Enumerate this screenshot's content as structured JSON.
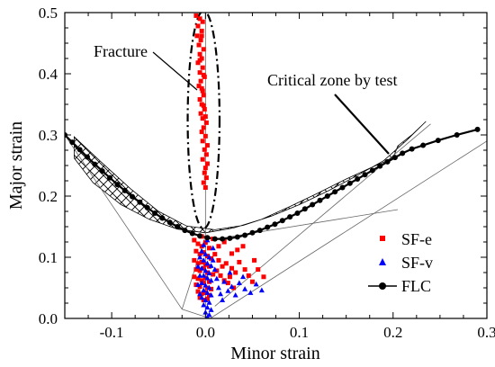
{
  "chart_data": {
    "type": "scatter",
    "xlabel": "Minor strain",
    "ylabel": "Major strain",
    "xlim": [
      -0.15,
      0.3
    ],
    "ylim": [
      0.0,
      0.5
    ],
    "x_ticks": [
      {
        "value": -0.1,
        "label": "-0.1"
      },
      {
        "value": 0.0,
        "label": "0.0"
      },
      {
        "value": 0.1,
        "label": "0.1"
      },
      {
        "value": 0.2,
        "label": "0.2"
      },
      {
        "value": 0.3,
        "label": "0.3"
      }
    ],
    "y_ticks": [
      {
        "value": 0.0,
        "label": "0.0"
      },
      {
        "value": 0.1,
        "label": "0.1"
      },
      {
        "value": 0.2,
        "label": "0.2"
      },
      {
        "value": 0.3,
        "label": "0.3"
      },
      {
        "value": 0.4,
        "label": "0.4"
      },
      {
        "value": 0.5,
        "label": "0.5"
      }
    ],
    "grid": false,
    "legend_position": "bottom-right",
    "annotations": {
      "fracture": "Fracture",
      "critical_zone": "Critical zone by test"
    },
    "series": [
      {
        "name": "SF-e",
        "marker": "square",
        "color": "#ff0000",
        "points": [
          [
            -0.01,
            0.495
          ],
          [
            -0.006,
            0.49
          ],
          [
            -0.003,
            0.485
          ],
          [
            -0.008,
            0.478
          ],
          [
            -0.004,
            0.47
          ],
          [
            -0.009,
            0.462
          ],
          [
            -0.005,
            0.455
          ],
          [
            -0.007,
            0.447
          ],
          [
            -0.002,
            0.44
          ],
          [
            -0.006,
            0.432
          ],
          [
            -0.004,
            0.425
          ],
          [
            -0.008,
            0.418
          ],
          [
            -0.003,
            0.41
          ],
          [
            -0.006,
            0.402
          ],
          [
            -0.001,
            0.395
          ],
          [
            -0.005,
            0.388
          ],
          [
            -0.007,
            0.38
          ],
          [
            -0.003,
            0.372
          ],
          [
            -0.002,
            0.365
          ],
          [
            -0.006,
            0.358
          ],
          [
            -0.004,
            0.35
          ],
          [
            -0.001,
            0.342
          ],
          [
            -0.005,
            0.335
          ],
          [
            -0.003,
            0.327
          ],
          [
            0.001,
            0.32
          ],
          [
            -0.002,
            0.312
          ],
          [
            -0.004,
            0.305
          ],
          [
            0.0,
            0.298
          ],
          [
            -0.003,
            0.29
          ],
          [
            0.002,
            0.283
          ],
          [
            -0.001,
            0.276
          ],
          [
            0.001,
            0.268
          ],
          [
            -0.003,
            0.26
          ],
          [
            0.002,
            0.253
          ],
          [
            0.0,
            0.246
          ],
          [
            -0.001,
            0.238
          ],
          [
            0.001,
            0.23
          ],
          [
            -0.002,
            0.222
          ],
          [
            0.0,
            0.214
          ],
          [
            -0.004,
            0.462
          ],
          [
            -0.006,
            0.422
          ],
          [
            -0.002,
            0.398
          ],
          [
            -0.004,
            0.376
          ],
          [
            -0.002,
            0.348
          ],
          [
            0.0,
            0.33
          ],
          [
            -0.012,
            0.128
          ],
          [
            -0.008,
            0.122
          ],
          [
            -0.004,
            0.118
          ],
          [
            0.0,
            0.124
          ],
          [
            0.004,
            0.115
          ],
          [
            -0.01,
            0.11
          ],
          [
            -0.006,
            0.105
          ],
          [
            -0.002,
            0.108
          ],
          [
            0.002,
            0.102
          ],
          [
            0.006,
            0.098
          ],
          [
            -0.012,
            0.095
          ],
          [
            -0.008,
            0.09
          ],
          [
            -0.004,
            0.092
          ],
          [
            0.0,
            0.088
          ],
          [
            0.004,
            0.085
          ],
          [
            -0.01,
            0.08
          ],
          [
            -0.006,
            0.078
          ],
          [
            -0.002,
            0.082
          ],
          [
            0.002,
            0.075
          ],
          [
            0.008,
            0.072
          ],
          [
            -0.012,
            0.068
          ],
          [
            -0.008,
            0.065
          ],
          [
            -0.004,
            0.062
          ],
          [
            0.0,
            0.066
          ],
          [
            0.004,
            0.06
          ],
          [
            -0.01,
            0.055
          ],
          [
            -0.006,
            0.052
          ],
          [
            -0.002,
            0.058
          ],
          [
            0.002,
            0.05
          ],
          [
            0.006,
            0.048
          ],
          [
            -0.008,
            0.044
          ],
          [
            -0.004,
            0.04
          ],
          [
            0.0,
            0.042
          ],
          [
            0.004,
            0.038
          ],
          [
            -0.006,
            0.034
          ],
          [
            -0.002,
            0.03
          ],
          [
            0.002,
            0.032
          ],
          [
            0.01,
            0.105
          ],
          [
            0.014,
            0.095
          ],
          [
            0.018,
            0.085
          ],
          [
            0.012,
            0.078
          ],
          [
            0.016,
            0.07
          ],
          [
            0.02,
            0.062
          ],
          [
            0.024,
            0.058
          ],
          [
            0.022,
            0.09
          ],
          [
            0.028,
            0.082
          ],
          [
            0.032,
            0.075
          ],
          [
            0.026,
            0.068
          ],
          [
            0.03,
            0.05
          ],
          [
            0.036,
            0.092
          ],
          [
            0.042,
            0.08
          ],
          [
            0.046,
            0.07
          ],
          [
            0.05,
            0.06
          ],
          [
            0.034,
            0.112
          ],
          [
            0.04,
            0.118
          ],
          [
            0.052,
            0.095
          ],
          [
            0.056,
            0.08
          ],
          [
            0.062,
            0.068
          ],
          [
            0.014,
            0.118
          ],
          [
            0.02,
            0.125
          ],
          [
            0.008,
            0.13
          ],
          [
            -0.004,
            0.134
          ],
          [
            0.028,
            0.106
          ]
        ]
      },
      {
        "name": "SF-v",
        "marker": "triangle",
        "color": "#0000ff",
        "points": [
          [
            -0.004,
            0.11
          ],
          [
            0.0,
            0.105
          ],
          [
            0.004,
            0.1
          ],
          [
            -0.002,
            0.095
          ],
          [
            0.002,
            0.09
          ],
          [
            0.006,
            0.086
          ],
          [
            -0.004,
            0.082
          ],
          [
            0.0,
            0.078
          ],
          [
            0.004,
            0.074
          ],
          [
            -0.002,
            0.07
          ],
          [
            0.002,
            0.066
          ],
          [
            0.006,
            0.062
          ],
          [
            -0.004,
            0.058
          ],
          [
            0.0,
            0.054
          ],
          [
            0.004,
            0.05
          ],
          [
            -0.002,
            0.046
          ],
          [
            0.002,
            0.042
          ],
          [
            0.006,
            0.038
          ],
          [
            -0.004,
            0.034
          ],
          [
            0.0,
            0.03
          ],
          [
            0.004,
            0.026
          ],
          [
            -0.002,
            0.022
          ],
          [
            0.002,
            0.018
          ],
          [
            0.006,
            0.014
          ],
          [
            0.0,
            0.01
          ],
          [
            0.004,
            0.006
          ],
          [
            0.002,
            0.002
          ],
          [
            -0.006,
            0.1
          ],
          [
            -0.008,
            0.085
          ],
          [
            -0.006,
            0.07
          ],
          [
            -0.008,
            0.055
          ],
          [
            -0.006,
            0.04
          ],
          [
            0.008,
            0.095
          ],
          [
            0.01,
            0.08
          ],
          [
            0.012,
            0.065
          ],
          [
            0.014,
            0.05
          ],
          [
            0.016,
            0.04
          ],
          [
            0.018,
            0.03
          ],
          [
            0.02,
            0.06
          ],
          [
            0.024,
            0.045
          ],
          [
            0.028,
            0.052
          ],
          [
            0.032,
            0.038
          ],
          [
            0.036,
            0.058
          ],
          [
            0.042,
            0.048
          ],
          [
            0.048,
            0.042
          ],
          [
            0.054,
            0.056
          ],
          [
            0.06,
            0.046
          ],
          [
            0.04,
            0.068
          ],
          [
            0.026,
            0.075
          ],
          [
            -0.002,
            0.12
          ],
          [
            0.002,
            0.128
          ],
          [
            0.008,
            0.115
          ]
        ]
      },
      {
        "name": "FLC",
        "marker": "circle",
        "color": "#000000",
        "points": [
          [
            -0.15,
            0.3
          ],
          [
            -0.142,
            0.288
          ],
          [
            -0.134,
            0.276
          ],
          [
            -0.126,
            0.264
          ],
          [
            -0.118,
            0.252
          ],
          [
            -0.11,
            0.241
          ],
          [
            -0.102,
            0.23
          ],
          [
            -0.094,
            0.219
          ],
          [
            -0.086,
            0.209
          ],
          [
            -0.078,
            0.199
          ],
          [
            -0.07,
            0.19
          ],
          [
            -0.062,
            0.181
          ],
          [
            -0.054,
            0.172
          ],
          [
            -0.046,
            0.164
          ],
          [
            -0.038,
            0.157
          ],
          [
            -0.03,
            0.15
          ],
          [
            -0.022,
            0.144
          ],
          [
            -0.014,
            0.139
          ],
          [
            -0.006,
            0.135
          ],
          [
            0.002,
            0.132
          ],
          [
            0.01,
            0.13
          ],
          [
            0.018,
            0.13
          ],
          [
            0.026,
            0.131
          ],
          [
            0.034,
            0.133
          ],
          [
            0.042,
            0.136
          ],
          [
            0.05,
            0.14
          ],
          [
            0.058,
            0.144
          ],
          [
            0.066,
            0.149
          ],
          [
            0.074,
            0.154
          ],
          [
            0.082,
            0.16
          ],
          [
            0.09,
            0.166
          ],
          [
            0.098,
            0.172
          ],
          [
            0.106,
            0.179
          ],
          [
            0.114,
            0.186
          ],
          [
            0.122,
            0.193
          ],
          [
            0.13,
            0.2
          ],
          [
            0.138,
            0.207
          ],
          [
            0.146,
            0.214
          ],
          [
            0.154,
            0.221
          ],
          [
            0.162,
            0.228
          ],
          [
            0.17,
            0.235
          ],
          [
            0.178,
            0.242
          ],
          [
            0.186,
            0.249
          ],
          [
            0.194,
            0.256
          ],
          [
            0.202,
            0.263
          ],
          [
            0.21,
            0.27
          ],
          [
            0.22,
            0.277
          ],
          [
            0.232,
            0.283
          ],
          [
            0.248,
            0.291
          ],
          [
            0.268,
            0.3
          ],
          [
            0.29,
            0.309
          ]
        ]
      }
    ]
  }
}
